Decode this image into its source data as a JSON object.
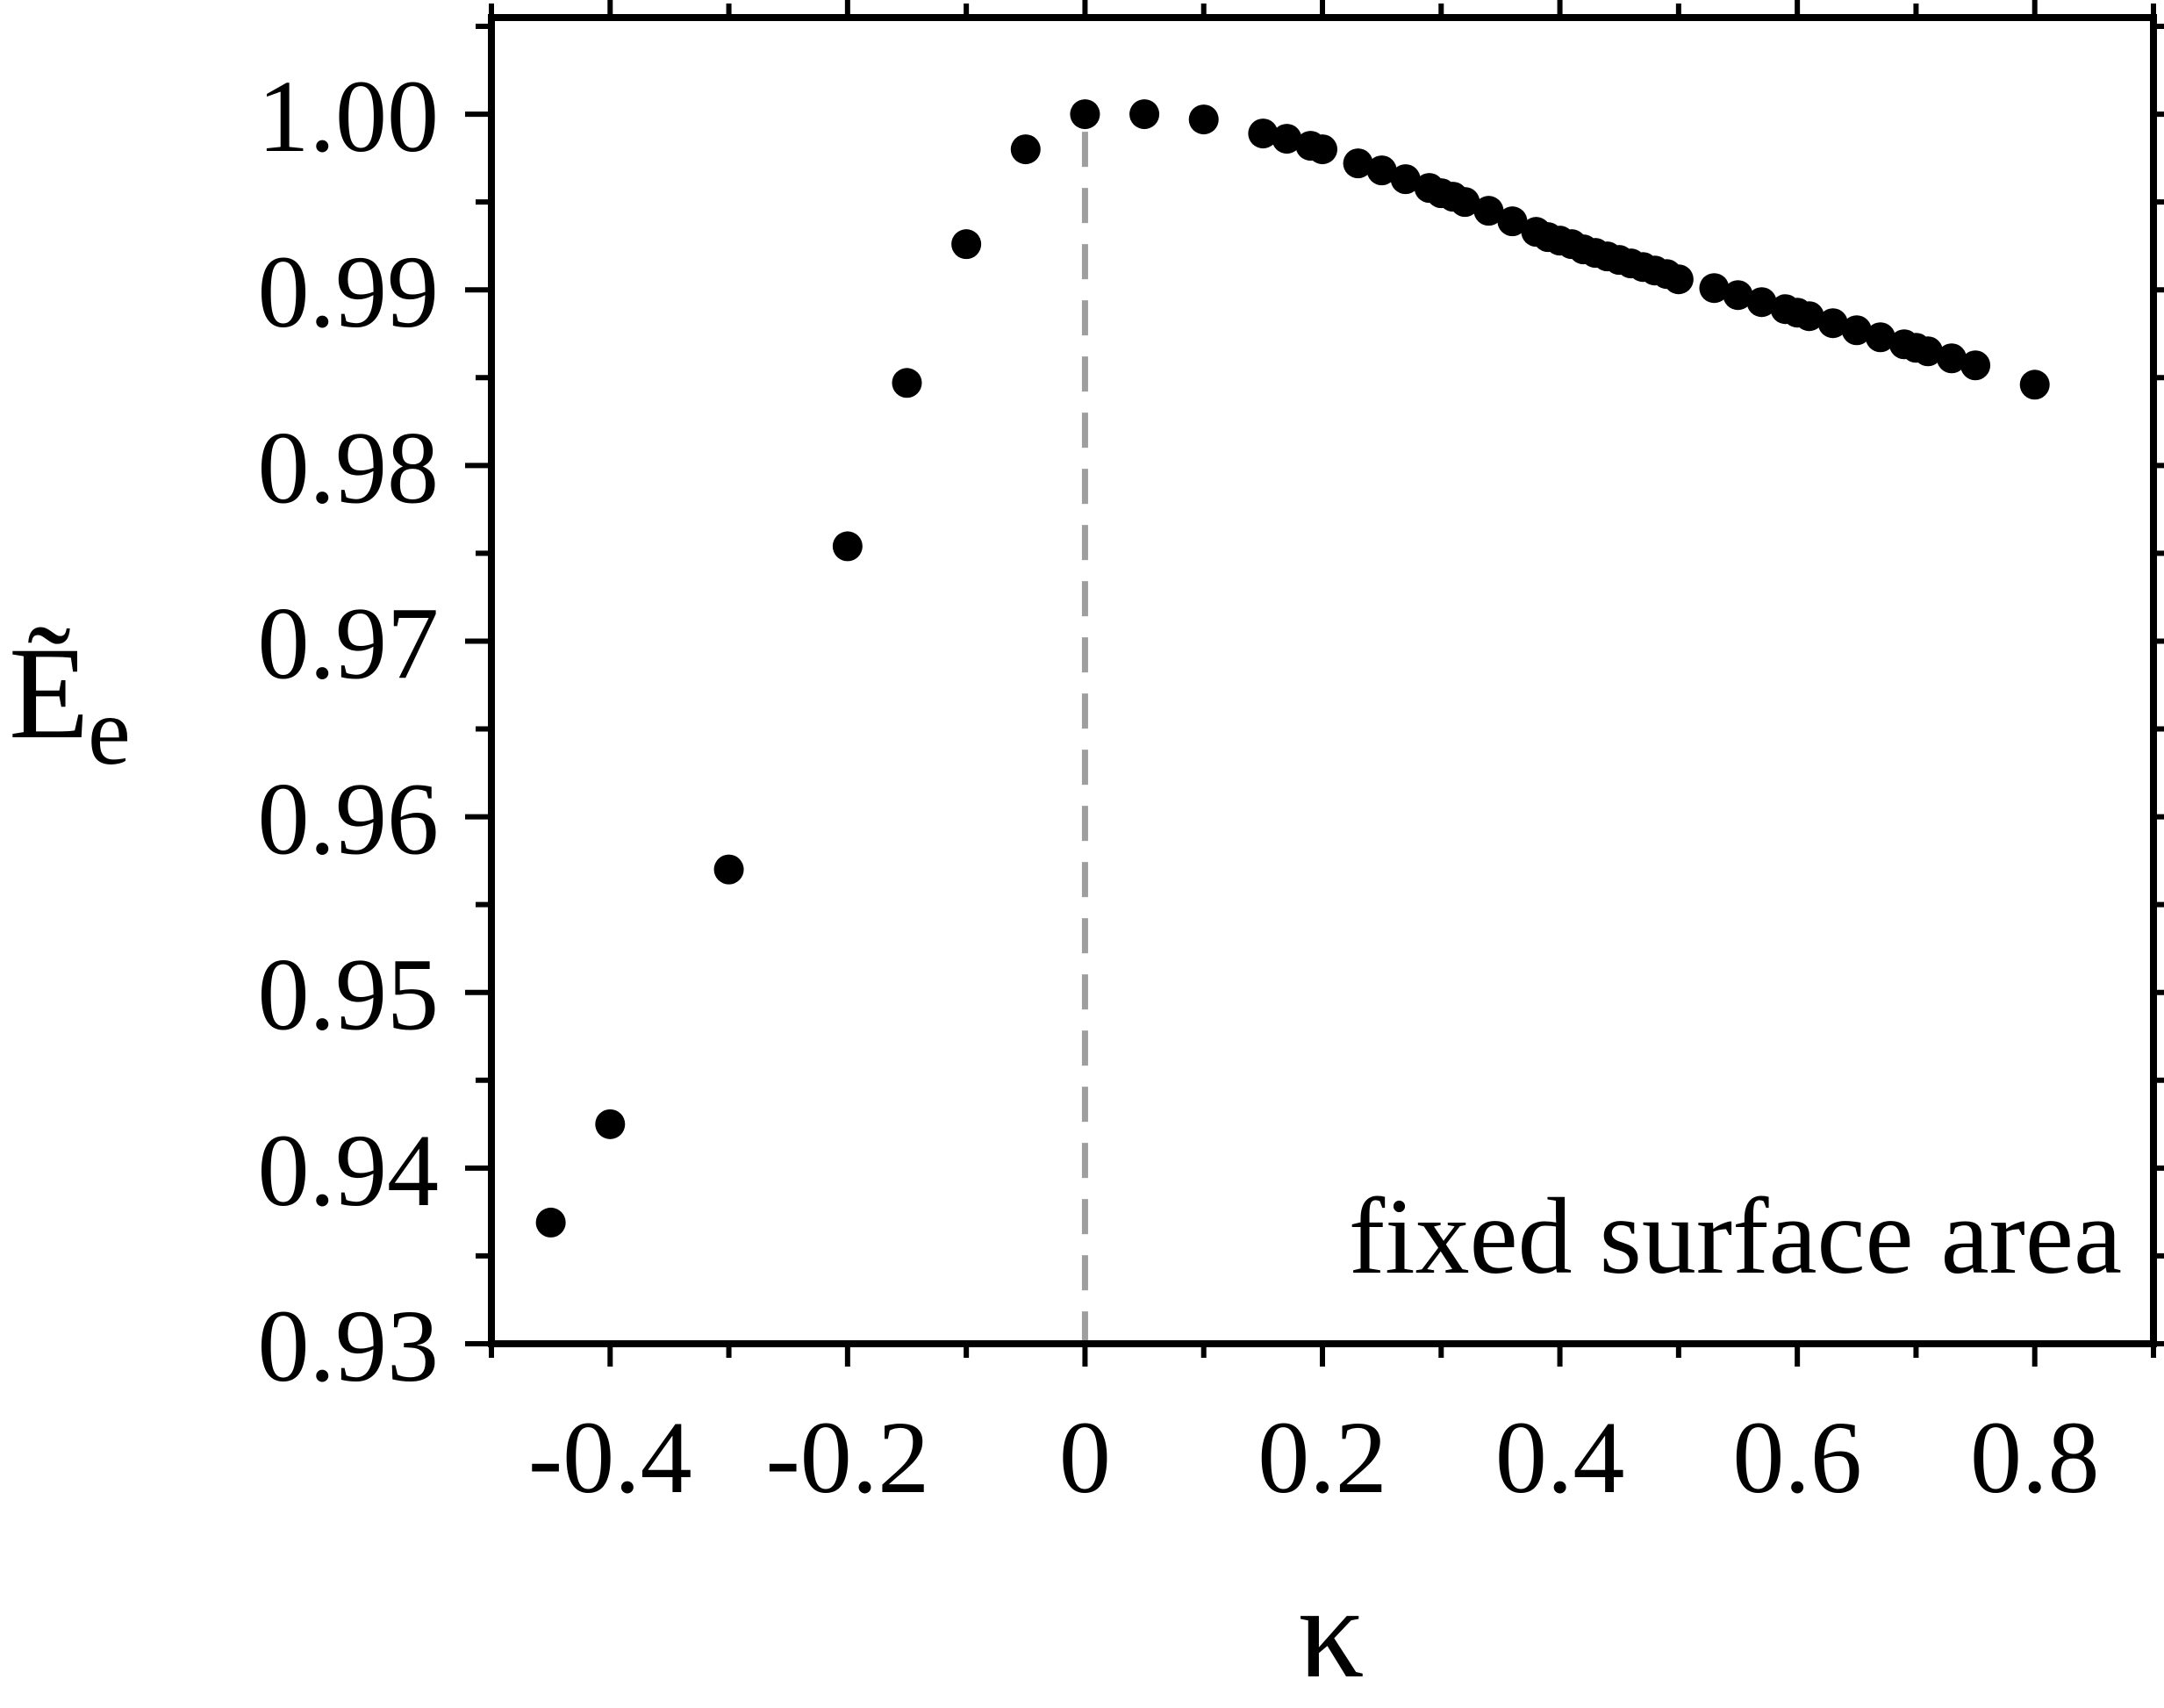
{
  "chart_data": {
    "type": "scatter",
    "title": "",
    "xlabel": "κ",
    "ylabel": "Ẽ",
    "ylabel_sub": "e",
    "xlim": [
      -0.5,
      0.9
    ],
    "ylim": [
      0.93,
      1.0055
    ],
    "x_ticks": [
      -0.4,
      -0.2,
      0,
      0.2,
      0.4,
      0.6,
      0.8
    ],
    "x_tick_labels": [
      "-0.4",
      "-0.2",
      "0",
      "0.2",
      "0.4",
      "0.6",
      "0.8"
    ],
    "y_ticks": [
      0.93,
      0.94,
      0.95,
      0.96,
      0.97,
      0.98,
      0.99,
      1.0
    ],
    "y_tick_labels": [
      "0.93",
      "0.94",
      "0.95",
      "0.96",
      "0.97",
      "0.98",
      "0.99",
      "1.00"
    ],
    "grid": false,
    "reference_line": {
      "x": 0,
      "style": "dashed",
      "color": "#9e9e9e"
    },
    "annotation": "fixed surface area",
    "marker_color": "#000000",
    "series": [
      {
        "x": [
          -0.45,
          -0.4,
          -0.3,
          -0.2,
          -0.15,
          -0.1,
          -0.05,
          0.0,
          0.05,
          0.1,
          0.15,
          0.17,
          0.19,
          0.2,
          0.23,
          0.25,
          0.27,
          0.29,
          0.3,
          0.31,
          0.32,
          0.34,
          0.36,
          0.38,
          0.39,
          0.4,
          0.41,
          0.42,
          0.43,
          0.44,
          0.45,
          0.46,
          0.47,
          0.48,
          0.49,
          0.5,
          0.53,
          0.55,
          0.57,
          0.59,
          0.6,
          0.61,
          0.63,
          0.65,
          0.67,
          0.69,
          0.7,
          0.71,
          0.73,
          0.75,
          0.8
        ],
        "y": [
          0.9369,
          0.9425,
          0.957,
          0.9754,
          0.9847,
          0.9926,
          0.998,
          1.0,
          1.0,
          0.9997,
          0.9989,
          0.9986,
          0.9982,
          0.998,
          0.9972,
          0.9968,
          0.9963,
          0.9958,
          0.9955,
          0.9953,
          0.995,
          0.9945,
          0.9939,
          0.9933,
          0.993,
          0.9928,
          0.9926,
          0.9923,
          0.9921,
          0.9919,
          0.9917,
          0.9915,
          0.9913,
          0.9911,
          0.9909,
          0.9906,
          0.9901,
          0.9897,
          0.9893,
          0.9889,
          0.9887,
          0.9885,
          0.9881,
          0.9877,
          0.9873,
          0.9869,
          0.9867,
          0.9865,
          0.9861,
          0.9857,
          0.9846
        ]
      }
    ]
  }
}
